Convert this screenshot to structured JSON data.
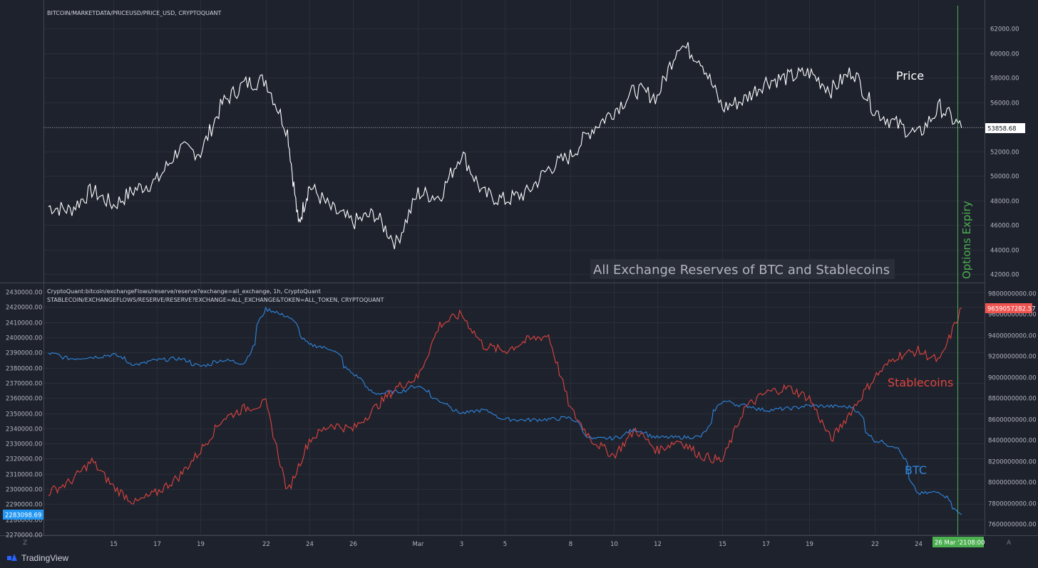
{
  "header": {
    "top_source": "BITCOIN/MARKETDATA/PRICEUSD/PRICE_USD, CRYPTOQUANT",
    "bottom_source_1": "CryptoQuant:bitcoin/exchangeFlows/reserve/reserve?exchange=all_exchange, 1h, CryptoQuant",
    "bottom_source_2": "STABLECOIN/EXCHANGEFLOWS/RESERVE/RESERVE?EXCHANGE=ALL_EXCHANGE&TOKEN=ALL_TOKEN, CRYPTOQUANT"
  },
  "annotations": {
    "price_label": "Price",
    "title_box": "All Exchange Reserves of BTC and Stablecoins",
    "options_expiry": "Options Expiry",
    "stablecoins_label": "Stablecoins",
    "btc_label": "BTC"
  },
  "footer": {
    "brand": "TradingView",
    "date_badge": "26 Mar '21",
    "time_badge": "08:00",
    "corner_left": "Z",
    "corner_right": "A"
  },
  "colors": {
    "background": "#1e222d",
    "price_line": "#ffffff",
    "btc_line": "#2e86de",
    "stable_line": "#e0443e",
    "expiry_line": "#4caf50"
  },
  "chart_data": [
    {
      "type": "line",
      "title": "BITCOIN/MARKETDATA/PRICEUSD/PRICE_USD, CRYPTOQUANT",
      "x_ticks": [
        "15",
        "17",
        "19",
        "22",
        "24",
        "26",
        "Mar",
        "3",
        "5",
        "8",
        "10",
        "12",
        "15",
        "17",
        "19",
        "22",
        "24"
      ],
      "yticks": [
        "62000.00",
        "60000.00",
        "58000.00",
        "56000.00",
        "54000.00",
        "52000.00",
        "50000.00",
        "48000.00",
        "46000.00",
        "44000.00",
        "42000.00"
      ],
      "ylim": [
        41000,
        63000
      ],
      "last_value_label": "53858.68",
      "series": [
        {
          "name": "Price",
          "x": [
            "Feb 12",
            "Feb 13",
            "Feb 14",
            "Feb 15",
            "Feb 16",
            "Feb 17",
            "Feb 18",
            "Feb 19",
            "Feb 20",
            "Feb 21",
            "Feb 22",
            "Feb 23",
            "Feb 23 12h",
            "Feb 24",
            "Feb 25",
            "Feb 26",
            "Feb 27",
            "Feb 28",
            "Mar 1",
            "Mar 2",
            "Mar 3",
            "Mar 4",
            "Mar 5",
            "Mar 6",
            "Mar 7",
            "Mar 8",
            "Mar 9",
            "Mar 10",
            "Mar 11",
            "Mar 12",
            "Mar 13",
            "Mar 14",
            "Mar 15",
            "Mar 16",
            "Mar 17",
            "Mar 18",
            "Mar 19",
            "Mar 20",
            "Mar 21",
            "Mar 22",
            "Mar 23",
            "Mar 24",
            "Mar 25",
            "Mar 26"
          ],
          "values": [
            47500,
            47200,
            48800,
            47600,
            48900,
            49600,
            52200,
            51900,
            55900,
            57500,
            57800,
            53600,
            46000,
            49200,
            47300,
            46200,
            46900,
            44500,
            48600,
            48300,
            51900,
            48500,
            48000,
            48600,
            50600,
            51600,
            53800,
            55300,
            57000,
            56400,
            60800,
            59500,
            55500,
            56200,
            57700,
            58000,
            58400,
            57000,
            58600,
            55300,
            54200,
            53300,
            55600,
            53900
          ]
        }
      ]
    },
    {
      "type": "line",
      "title": "All Exchange Reserves of BTC and Stablecoins",
      "x_ticks": [
        "15",
        "17",
        "19",
        "22",
        "24",
        "26",
        "Mar",
        "3",
        "5",
        "8",
        "10",
        "12",
        "15",
        "17",
        "19",
        "22",
        "24"
      ],
      "left_yticks": [
        "2430000.00",
        "2420000.00",
        "2410000.00",
        "2400000.00",
        "2390000.00",
        "2380000.00",
        "2370000.00",
        "2360000.00",
        "2350000.00",
        "2340000.00",
        "2330000.00",
        "2320000.00",
        "2310000.00",
        "2300000.00",
        "2290000.00",
        "2280000.00",
        "2270000.00"
      ],
      "right_yticks": [
        "9800000000.00",
        "9600000000.00",
        "9400000000.00",
        "9200000000.00",
        "9000000000.00",
        "8800000000.00",
        "8600000000.00",
        "8400000000.00",
        "8200000000.00",
        "8000000000.00",
        "7800000000.00",
        "7600000000.00"
      ],
      "left_ylim": [
        2269000,
        2432000
      ],
      "right_ylim": [
        7530000000,
        9820000000
      ],
      "btc_last_label": "2283098.69",
      "stable_last_label": "9659057282.57",
      "series": [
        {
          "name": "BTC",
          "axis": "left",
          "x": [
            "Feb 12",
            "Feb 13",
            "Feb 14",
            "Feb 15",
            "Feb 16",
            "Feb 17",
            "Feb 18",
            "Feb 19",
            "Feb 20",
            "Feb 21",
            "Feb 22",
            "Feb 23",
            "Feb 24",
            "Feb 25",
            "Feb 26",
            "Feb 27",
            "Feb 28",
            "Mar 1",
            "Mar 2",
            "Mar 3",
            "Mar 4",
            "Mar 5",
            "Mar 6",
            "Mar 7",
            "Mar 8",
            "Mar 9",
            "Mar 10",
            "Mar 11",
            "Mar 12",
            "Mar 13",
            "Mar 14",
            "Mar 15",
            "Mar 16",
            "Mar 17",
            "Mar 18",
            "Mar 19",
            "Mar 20",
            "Mar 21",
            "Mar 22",
            "Mar 23",
            "Mar 24",
            "Mar 25",
            "Mar 26"
          ],
          "values": [
            2389500,
            2386000,
            2387000,
            2388500,
            2382000,
            2385000,
            2386000,
            2381000,
            2385000,
            2383000,
            2418500,
            2414000,
            2395000,
            2392500,
            2376000,
            2363000,
            2364000,
            2368000,
            2358000,
            2350000,
            2352000,
            2346000,
            2345500,
            2346000,
            2347000,
            2333000,
            2333500,
            2339000,
            2334000,
            2334000,
            2334500,
            2358000,
            2355000,
            2352000,
            2353000,
            2355000,
            2354500,
            2354000,
            2332000,
            2328000,
            2297000,
            2298000,
            2283098.69
          ]
        },
        {
          "name": "Stablecoins",
          "axis": "right",
          "x": [
            "Feb 12",
            "Feb 13",
            "Feb 14",
            "Feb 15",
            "Feb 16",
            "Feb 17",
            "Feb 18",
            "Feb 19",
            "Feb 20",
            "Feb 21",
            "Feb 22",
            "Feb 23",
            "Feb 24",
            "Feb 25",
            "Feb 26",
            "Feb 27",
            "Feb 28",
            "Mar 1",
            "Mar 2",
            "Mar 3",
            "Mar 4",
            "Mar 5",
            "Mar 6",
            "Mar 7",
            "Mar 8",
            "Mar 9",
            "Mar 10",
            "Mar 11",
            "Mar 12",
            "Mar 13",
            "Mar 14",
            "Mar 15",
            "Mar 16",
            "Mar 17",
            "Mar 18",
            "Mar 19",
            "Mar 20",
            "Mar 21",
            "Mar 22",
            "Mar 23",
            "Mar 24",
            "Mar 25",
            "Mar 26"
          ],
          "values": [
            7900000000,
            8000000000,
            8200000000,
            7950000000,
            7800000000,
            7900000000,
            8050000000,
            8300000000,
            8600000000,
            8700000000,
            8750000000,
            7900000000,
            8400000000,
            8550000000,
            8500000000,
            8700000000,
            8900000000,
            9000000000,
            9500000000,
            9600000000,
            9300000000,
            9250000000,
            9350000000,
            9400000000,
            8700000000,
            8400000000,
            8250000000,
            8500000000,
            8300000000,
            8400000000,
            8250000000,
            8200000000,
            8700000000,
            8850000000,
            8900000000,
            8800000000,
            8400000000,
            8700000000,
            9000000000,
            9200000000,
            9250000000,
            9150000000,
            9659057282.57
          ]
        }
      ]
    }
  ]
}
